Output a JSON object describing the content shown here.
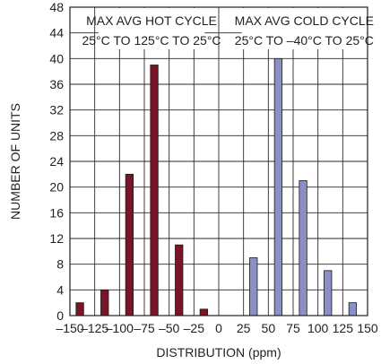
{
  "chart_data": {
    "type": "bar",
    "title": "",
    "xlabel": "DISTRIBUTION (ppm)",
    "ylabel": "NUMBER OF UNITS",
    "xlim": [
      -150,
      150
    ],
    "ylim": [
      0,
      48
    ],
    "x_ticks": [
      -150,
      -125,
      -100,
      -75,
      -50,
      -25,
      0,
      25,
      50,
      75,
      100,
      125,
      150
    ],
    "x_tick_labels": [
      "–150",
      "–125",
      "–100",
      "–75",
      "–50",
      "–25",
      "0",
      "25",
      "50",
      "75",
      "100",
      "125",
      "150"
    ],
    "y_ticks": [
      0,
      4,
      8,
      12,
      16,
      20,
      24,
      28,
      32,
      36,
      40,
      44,
      48
    ],
    "grid": true,
    "series": [
      {
        "name": "MAX AVG HOT CYCLE",
        "color": "#7a1428",
        "x": [
          -140,
          -115,
          -90,
          -65,
          -40,
          -15
        ],
        "values": [
          2,
          4,
          22,
          39,
          11,
          1
        ]
      },
      {
        "name": "MAX AVG COLD CYCLE",
        "color": "#8a90c4",
        "x": [
          35,
          60,
          85,
          110,
          135,
          160
        ],
        "values": [
          9,
          40,
          21,
          7,
          2,
          0
        ]
      }
    ],
    "annotations": [
      {
        "line1": "MAX AVG HOT CYCLE",
        "line2": "25°C TO 125°C TO 25°C",
        "anchor_x": -75
      },
      {
        "line1": "MAX AVG COLD CYCLE",
        "line2": "25°C TO –40°C TO 25°C",
        "anchor_x": 75
      }
    ]
  }
}
